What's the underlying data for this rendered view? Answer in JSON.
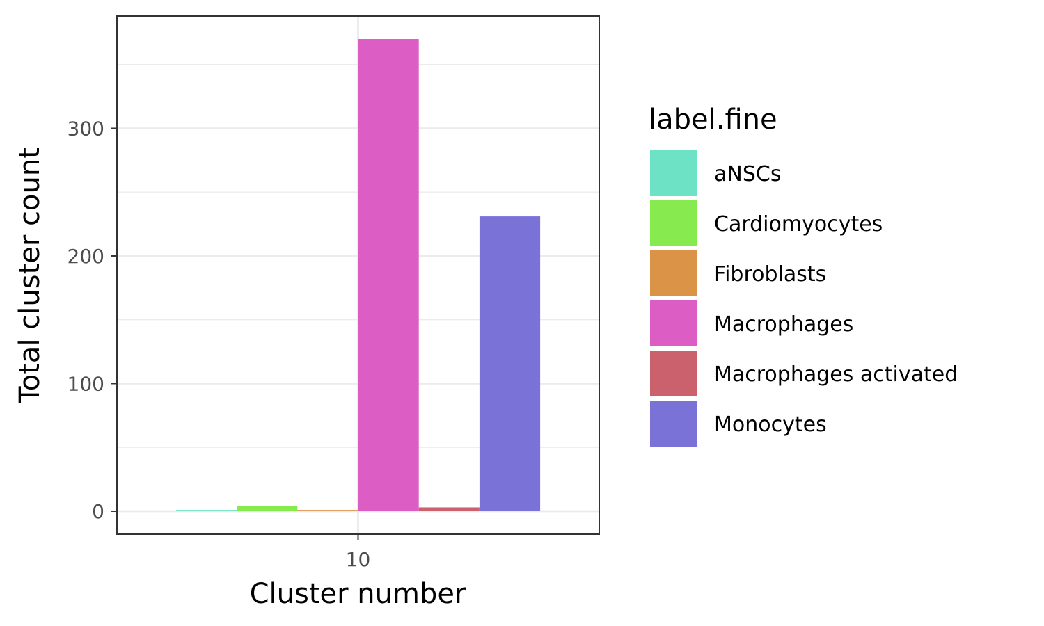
{
  "chart_data": {
    "type": "bar",
    "categories": [
      "10"
    ],
    "xlabel": "Cluster number",
    "ylabel": "Total cluster count",
    "ylim": [
      -18,
      388
    ],
    "yticks": [
      0,
      100,
      200,
      300
    ],
    "y_minor_gridlines": [
      50,
      150,
      250,
      350
    ],
    "grid": true,
    "legend_title": "label.fine",
    "legend_position": "right",
    "series": [
      {
        "name": "aNSCs",
        "color": "#6ee2c5",
        "values": [
          1
        ]
      },
      {
        "name": "Cardiomyocytes",
        "color": "#87eb4f",
        "values": [
          4
        ]
      },
      {
        "name": "Fibroblasts",
        "color": "#db9348",
        "values": [
          1
        ]
      },
      {
        "name": "Macrophages",
        "color": "#dc5dc3",
        "values": [
          370
        ]
      },
      {
        "name": "Macrophages activated",
        "color": "#cb616d",
        "values": [
          3
        ]
      },
      {
        "name": "Monocytes",
        "color": "#7b72d8",
        "values": [
          231
        ]
      }
    ]
  }
}
